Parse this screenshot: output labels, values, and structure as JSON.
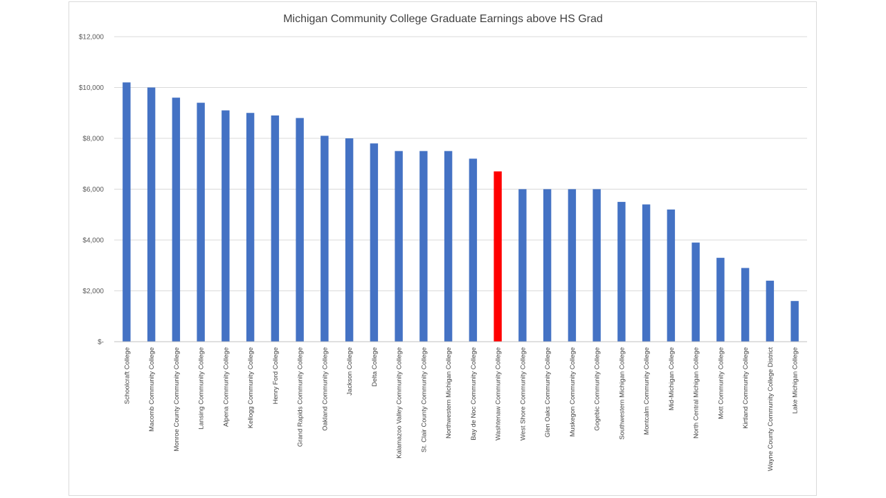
{
  "chart_data": {
    "type": "bar",
    "title": "Michigan Community College Graduate Earnings above HS Grad",
    "xlabel": "",
    "ylabel": "",
    "ylim": [
      0,
      12000
    ],
    "yticks": [
      0,
      2000,
      4000,
      6000,
      8000,
      10000,
      12000
    ],
    "ytick_labels": [
      "$-",
      "$2,000",
      "$4,000",
      "$6,000",
      "$8,000",
      "$10,000",
      "$12,000"
    ],
    "grid": true,
    "legend": "none",
    "bar_color": "#4472C4",
    "highlight_color": "#FF0000",
    "highlight_category": "Washtenaw Community College",
    "categories": [
      "Schoolcraft College",
      "Macomb Community College",
      "Monroe County Community College",
      "Lansing Community College",
      "Alpena Community College",
      "Kellogg Community College",
      "Henry Ford College",
      "Grand Rapids Community College",
      "Oakland Community College",
      "Jackson College",
      "Delta College",
      "Kalamazoo Valley Community College",
      "St. Clair County Community College",
      "Northwestern Michigan College",
      "Bay de Noc Community College",
      "Washtenaw Community College",
      "West Shore Community College",
      "Glen Oaks Community College",
      "Muskegon Community College",
      "Gogebic Community College",
      "Southwestern Michigan College",
      "Montcalm Community College",
      "Mid-Michigan College",
      "North Central Michigan College",
      "Mott Community College",
      "Kirtland Community College",
      "Wayne County Community College District",
      "Lake Michigan College"
    ],
    "values": [
      10200,
      10000,
      9600,
      9400,
      9100,
      9000,
      8900,
      8800,
      8100,
      8000,
      7800,
      7500,
      7500,
      7500,
      7200,
      6700,
      6000,
      6000,
      6000,
      6000,
      5500,
      5400,
      5200,
      3900,
      3300,
      2900,
      2400,
      1600
    ]
  }
}
